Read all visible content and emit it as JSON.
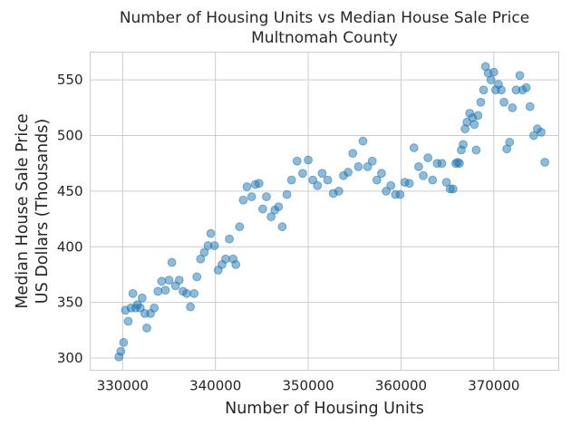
{
  "chart_data": {
    "type": "scatter",
    "title_lines": [
      "Number of Housing Units vs Median House Sale Price",
      "Multnomah County"
    ],
    "xlabel": "Number of Housing Units",
    "ylabel_lines": [
      "Median House Sale Price",
      "US Dollars (Thousands)"
    ],
    "xlim": [
      326500,
      377000
    ],
    "ylim": [
      289,
      575
    ],
    "xticks": [
      330000,
      340000,
      350000,
      360000,
      370000
    ],
    "xtick_labels": [
      "330000",
      "340000",
      "350000",
      "360000",
      "370000"
    ],
    "yticks": [
      300,
      350,
      400,
      450,
      500,
      550
    ],
    "ytick_labels": [
      "300",
      "350",
      "400",
      "450",
      "500",
      "550"
    ],
    "grid": true,
    "legend": "none",
    "marker_color": "#1f77b4",
    "marker_alpha": 0.5,
    "points": [
      [
        329600,
        301
      ],
      [
        329800,
        306
      ],
      [
        330100,
        314
      ],
      [
        330300,
        343
      ],
      [
        330600,
        333
      ],
      [
        330900,
        345
      ],
      [
        331100,
        358
      ],
      [
        331400,
        345
      ],
      [
        331600,
        348
      ],
      [
        331900,
        345
      ],
      [
        332100,
        354
      ],
      [
        332400,
        340
      ],
      [
        332600,
        327
      ],
      [
        333000,
        340
      ],
      [
        333400,
        345
      ],
      [
        333800,
        360
      ],
      [
        334200,
        369
      ],
      [
        334600,
        361
      ],
      [
        335000,
        370
      ],
      [
        335300,
        386
      ],
      [
        335700,
        365
      ],
      [
        336100,
        370
      ],
      [
        336500,
        360
      ],
      [
        336900,
        358
      ],
      [
        337300,
        346
      ],
      [
        337700,
        358
      ],
      [
        338000,
        373
      ],
      [
        338400,
        389
      ],
      [
        338800,
        395
      ],
      [
        339200,
        401
      ],
      [
        339500,
        412
      ],
      [
        339900,
        401
      ],
      [
        340300,
        379
      ],
      [
        340700,
        384
      ],
      [
        341100,
        389
      ],
      [
        341500,
        407
      ],
      [
        341900,
        389
      ],
      [
        342200,
        384
      ],
      [
        342600,
        418
      ],
      [
        343000,
        442
      ],
      [
        343400,
        454
      ],
      [
        343900,
        445
      ],
      [
        344300,
        456
      ],
      [
        344700,
        457
      ],
      [
        345100,
        434
      ],
      [
        345500,
        445
      ],
      [
        346000,
        427
      ],
      [
        346400,
        433
      ],
      [
        346800,
        436
      ],
      [
        347200,
        418
      ],
      [
        347700,
        447
      ],
      [
        348200,
        460
      ],
      [
        348800,
        477
      ],
      [
        349400,
        466
      ],
      [
        350000,
        478
      ],
      [
        350500,
        460
      ],
      [
        351000,
        455
      ],
      [
        351500,
        466
      ],
      [
        352100,
        460
      ],
      [
        352700,
        448
      ],
      [
        353300,
        450
      ],
      [
        353800,
        464
      ],
      [
        354300,
        467
      ],
      [
        354800,
        484
      ],
      [
        355400,
        472
      ],
      [
        355900,
        495
      ],
      [
        356400,
        472
      ],
      [
        356900,
        477
      ],
      [
        357400,
        460
      ],
      [
        357900,
        466
      ],
      [
        358400,
        450
      ],
      [
        358900,
        455
      ],
      [
        359400,
        447
      ],
      [
        359900,
        447
      ],
      [
        360400,
        458
      ],
      [
        360900,
        457
      ],
      [
        361400,
        489
      ],
      [
        361900,
        472
      ],
      [
        362400,
        464
      ],
      [
        362900,
        480
      ],
      [
        363400,
        460
      ],
      [
        363900,
        475
      ],
      [
        364400,
        475
      ],
      [
        364900,
        458
      ],
      [
        365300,
        452
      ],
      [
        365600,
        452
      ],
      [
        365900,
        475
      ],
      [
        366100,
        476
      ],
      [
        366300,
        475
      ],
      [
        366500,
        487
      ],
      [
        366700,
        492
      ],
      [
        366900,
        506
      ],
      [
        367100,
        512
      ],
      [
        367400,
        520
      ],
      [
        367700,
        516
      ],
      [
        367900,
        510
      ],
      [
        368100,
        487
      ],
      [
        368300,
        518
      ],
      [
        368600,
        530
      ],
      [
        368900,
        541
      ],
      [
        369100,
        562
      ],
      [
        369400,
        556
      ],
      [
        369700,
        550
      ],
      [
        370000,
        557
      ],
      [
        370200,
        541
      ],
      [
        370500,
        546
      ],
      [
        370800,
        541
      ],
      [
        371100,
        530
      ],
      [
        371400,
        488
      ],
      [
        371700,
        494
      ],
      [
        372000,
        525
      ],
      [
        372400,
        541
      ],
      [
        372800,
        554
      ],
      [
        373100,
        541
      ],
      [
        373500,
        543
      ],
      [
        373900,
        526
      ],
      [
        374300,
        500
      ],
      [
        374700,
        506
      ],
      [
        375100,
        503
      ],
      [
        375500,
        476
      ]
    ]
  }
}
